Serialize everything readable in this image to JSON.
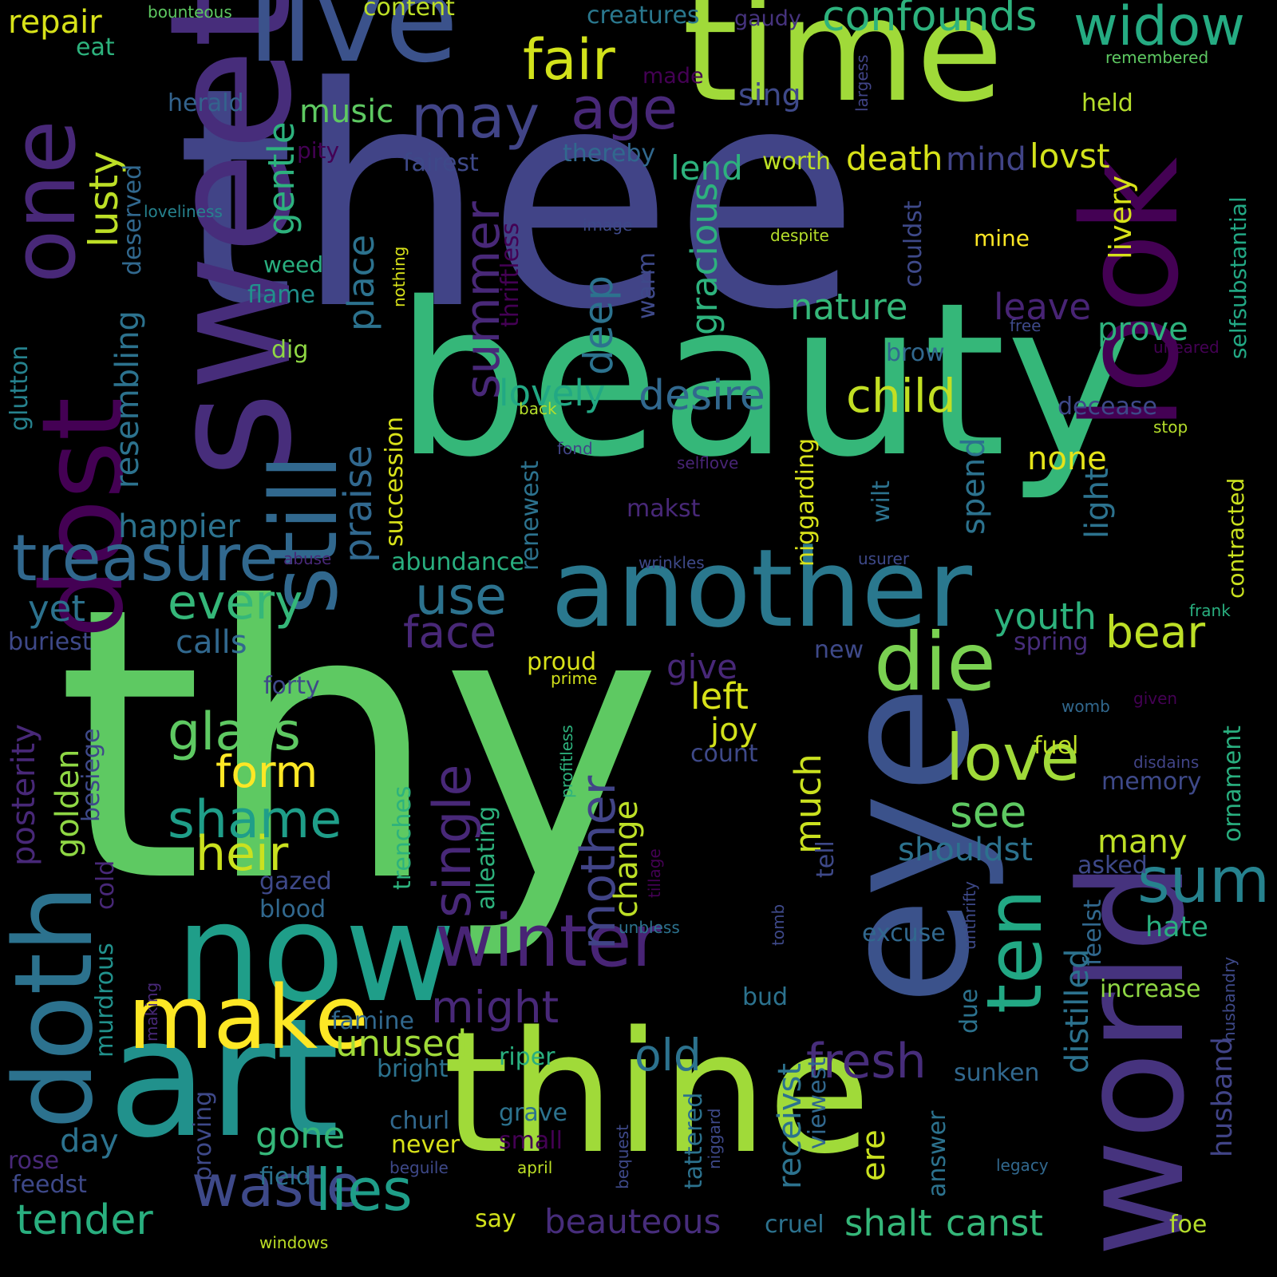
{
  "words": [
    {
      "text": "thy",
      "color": "#5ec962"
    },
    {
      "text": "thee",
      "color": "#414487"
    },
    {
      "text": "beauty",
      "color": "#35b779"
    },
    {
      "text": "time",
      "color": "#a0da39"
    },
    {
      "text": "sweet",
      "color": "#472d7b"
    },
    {
      "text": "thine",
      "color": "#a0da39"
    },
    {
      "text": "world",
      "color": "#46337e"
    },
    {
      "text": "eye",
      "color": "#3b528b"
    },
    {
      "text": "art",
      "color": "#21918c"
    },
    {
      "text": "now",
      "color": "#1f9e89"
    },
    {
      "text": "live",
      "color": "#3b528b"
    },
    {
      "text": "look",
      "color": "#440154"
    },
    {
      "text": "another",
      "color": "#2a788e"
    },
    {
      "text": "doth",
      "color": "#2c728e"
    },
    {
      "text": "dost",
      "color": "#440154"
    },
    {
      "text": "one",
      "color": "#482878"
    },
    {
      "text": "still",
      "color": "#31688e"
    },
    {
      "text": "ten",
      "color": "#22a884"
    },
    {
      "text": "make",
      "color": "#fde725"
    },
    {
      "text": "die",
      "color": "#7ad151"
    },
    {
      "text": "treasure",
      "color": "#31688e"
    },
    {
      "text": "winter",
      "color": "#482475"
    },
    {
      "text": "waste",
      "color": "#3e4989"
    },
    {
      "text": "lies",
      "color": "#1f9e89"
    },
    {
      "text": "love",
      "color": "#a0da39"
    },
    {
      "text": "sum",
      "color": "#26828e"
    },
    {
      "text": "fair",
      "color": "#d2e21b"
    },
    {
      "text": "age",
      "color": "#482878"
    },
    {
      "text": "may",
      "color": "#414487"
    },
    {
      "text": "widow",
      "color": "#25ab82"
    },
    {
      "text": "confounds",
      "color": "#2db27d"
    },
    {
      "text": "repair",
      "color": "#d8e219"
    },
    {
      "text": "content",
      "color": "#bddf26"
    },
    {
      "text": "creatures",
      "color": "#2a788e"
    },
    {
      "text": "gaudy",
      "color": "#46337e"
    },
    {
      "text": "bounteous",
      "color": "#5ec962"
    },
    {
      "text": "eat",
      "color": "#2db27d"
    },
    {
      "text": "remembered",
      "color": "#5ec962"
    },
    {
      "text": "music",
      "color": "#5ec962"
    },
    {
      "text": "sing",
      "color": "#3e4989"
    },
    {
      "text": "made",
      "color": "#440154"
    },
    {
      "text": "herald",
      "color": "#33638d"
    },
    {
      "text": "held",
      "color": "#b5de2b"
    },
    {
      "text": "largess",
      "color": "#414487"
    },
    {
      "text": "pity",
      "color": "#440154"
    },
    {
      "text": "fairest",
      "color": "#3e4989"
    },
    {
      "text": "thereby",
      "color": "#31688e"
    },
    {
      "text": "worth",
      "color": "#bddf26"
    },
    {
      "text": "death",
      "color": "#d8e219"
    },
    {
      "text": "mind",
      "color": "#414487"
    },
    {
      "text": "lovst",
      "color": "#d2e21b"
    },
    {
      "text": "lend",
      "color": "#2db27d"
    },
    {
      "text": "lusty",
      "color": "#bddf26"
    },
    {
      "text": "gentle",
      "color": "#2db27d"
    },
    {
      "text": "summer",
      "color": "#482878"
    },
    {
      "text": "deep",
      "color": "#2c728e"
    },
    {
      "text": "gracious",
      "color": "#2db27d"
    },
    {
      "text": "thriftless",
      "color": "#440154"
    },
    {
      "text": "couldst",
      "color": "#3e4989"
    },
    {
      "text": "livery",
      "color": "#d8e219"
    },
    {
      "text": "selfsubstantial",
      "color": "#22a884"
    },
    {
      "text": "deserved",
      "color": "#31688e"
    },
    {
      "text": "loveliness",
      "color": "#26828e"
    },
    {
      "text": "image",
      "color": "#3e4989"
    },
    {
      "text": "despite",
      "color": "#b5de2b"
    },
    {
      "text": "mine",
      "color": "#fde725"
    },
    {
      "text": "nothing",
      "color": "#d8e219"
    },
    {
      "text": "weed",
      "color": "#29af7f"
    },
    {
      "text": "flame",
      "color": "#21918c"
    },
    {
      "text": "place",
      "color": "#2c728e"
    },
    {
      "text": "nature",
      "color": "#35b779"
    },
    {
      "text": "leave",
      "color": "#482475"
    },
    {
      "text": "prove",
      "color": "#2db27d"
    },
    {
      "text": "warm",
      "color": "#3e4989"
    },
    {
      "text": "free",
      "color": "#3e4989"
    },
    {
      "text": "dig",
      "color": "#8fd744"
    },
    {
      "text": "brow",
      "color": "#31688e"
    },
    {
      "text": "uneared",
      "color": "#440154"
    },
    {
      "text": "glutton",
      "color": "#26828e"
    },
    {
      "text": "resembling",
      "color": "#2c728e"
    },
    {
      "text": "praise",
      "color": "#31688e"
    },
    {
      "text": "lovely",
      "color": "#22a884"
    },
    {
      "text": "desire",
      "color": "#31688e"
    },
    {
      "text": "child",
      "color": "#c2df23"
    },
    {
      "text": "decease",
      "color": "#3e4989"
    },
    {
      "text": "back",
      "color": "#b5de2b"
    },
    {
      "text": "stop",
      "color": "#b5de2b"
    },
    {
      "text": "succession",
      "color": "#d8e219"
    },
    {
      "text": "wilt",
      "color": "#2c728e"
    },
    {
      "text": "none",
      "color": "#e5e419"
    },
    {
      "text": "niggarding",
      "color": "#d8e219"
    },
    {
      "text": "selflove",
      "color": "#482475"
    },
    {
      "text": "fond",
      "color": "#414487"
    },
    {
      "text": "spend",
      "color": "#2c728e"
    },
    {
      "text": "contracted",
      "color": "#cae11f"
    },
    {
      "text": "happier",
      "color": "#2c728e"
    },
    {
      "text": "makst",
      "color": "#482878"
    },
    {
      "text": "renewest",
      "color": "#2c728e"
    },
    {
      "text": "light",
      "color": "#2c728e"
    },
    {
      "text": "abuse",
      "color": "#482878"
    },
    {
      "text": "abundance",
      "color": "#29af7f"
    },
    {
      "text": "wrinkles",
      "color": "#3e4989"
    },
    {
      "text": "usurer",
      "color": "#3e4989"
    },
    {
      "text": "every",
      "color": "#35b779"
    },
    {
      "text": "use",
      "color": "#2c728e"
    },
    {
      "text": "face",
      "color": "#482878"
    },
    {
      "text": "youth",
      "color": "#2db27d"
    },
    {
      "text": "bear",
      "color": "#bddf26"
    },
    {
      "text": "frank",
      "color": "#29af7f"
    },
    {
      "text": "yet",
      "color": "#2c728e"
    },
    {
      "text": "calls",
      "color": "#31688e"
    },
    {
      "text": "buriest",
      "color": "#3e4989"
    },
    {
      "text": "spring",
      "color": "#472d7b"
    },
    {
      "text": "proud",
      "color": "#d8e219"
    },
    {
      "text": "new",
      "color": "#3e4989"
    },
    {
      "text": "give",
      "color": "#482878"
    },
    {
      "text": "left",
      "color": "#d8e219"
    },
    {
      "text": "prime",
      "color": "#d2e21b"
    },
    {
      "text": "forty",
      "color": "#3e4989"
    },
    {
      "text": "posterity",
      "color": "#482878"
    },
    {
      "text": "golden",
      "color": "#8fd744"
    },
    {
      "text": "besiege",
      "color": "#3e4989"
    },
    {
      "text": "glass",
      "color": "#5ec962"
    },
    {
      "text": "single",
      "color": "#482878"
    },
    {
      "text": "joy",
      "color": "#d2e21b"
    },
    {
      "text": "profitless",
      "color": "#2db27d"
    },
    {
      "text": "womb",
      "color": "#31688e"
    },
    {
      "text": "given",
      "color": "#440154"
    },
    {
      "text": "form",
      "color": "#fde725"
    },
    {
      "text": "mother",
      "color": "#414487"
    },
    {
      "text": "count",
      "color": "#3e4989"
    },
    {
      "text": "fuel",
      "color": "#bddf26"
    },
    {
      "text": "disdains",
      "color": "#414487"
    },
    {
      "text": "ornament",
      "color": "#29af7f"
    },
    {
      "text": "shame",
      "color": "#1f9e89"
    },
    {
      "text": "change",
      "color": "#bddf26"
    },
    {
      "text": "see",
      "color": "#5ec962"
    },
    {
      "text": "memory",
      "color": "#3e4989"
    },
    {
      "text": "cold",
      "color": "#482878"
    },
    {
      "text": "heir",
      "color": "#cae11f"
    },
    {
      "text": "much",
      "color": "#cae11f"
    },
    {
      "text": "tell",
      "color": "#3e4989"
    },
    {
      "text": "many",
      "color": "#bddf26"
    },
    {
      "text": "shouldst",
      "color": "#2c728e"
    },
    {
      "text": "alleating",
      "color": "#2db27d"
    },
    {
      "text": "unthrifty",
      "color": "#3e4989"
    },
    {
      "text": "asked",
      "color": "#3e4989"
    },
    {
      "text": "murdrous",
      "color": "#21918c"
    },
    {
      "text": "gazed",
      "color": "#3e4989"
    },
    {
      "text": "trenches",
      "color": "#2db27d"
    },
    {
      "text": "tillage",
      "color": "#440154"
    },
    {
      "text": "blood",
      "color": "#31688e"
    },
    {
      "text": "hate",
      "color": "#29af7f"
    },
    {
      "text": "unbless",
      "color": "#2c728e"
    },
    {
      "text": "excuse",
      "color": "#31688e"
    },
    {
      "text": "feelst",
      "color": "#31688e"
    },
    {
      "text": "might",
      "color": "#482878"
    },
    {
      "text": "making",
      "color": "#482878"
    },
    {
      "text": "tomb",
      "color": "#3e4989"
    },
    {
      "text": "bud",
      "color": "#2c728e"
    },
    {
      "text": "increase",
      "color": "#8fd744"
    },
    {
      "text": "distilled",
      "color": "#2c728e"
    },
    {
      "text": "famine",
      "color": "#31688e"
    },
    {
      "text": "due",
      "color": "#2c728e"
    },
    {
      "text": "husbandry",
      "color": "#3e4989"
    },
    {
      "text": "unused",
      "color": "#a0da39"
    },
    {
      "text": "old",
      "color": "#2c728e"
    },
    {
      "text": "fresh",
      "color": "#472d7b"
    },
    {
      "text": "riper",
      "color": "#29af7f"
    },
    {
      "text": "bright",
      "color": "#2c728e"
    },
    {
      "text": "sunken",
      "color": "#31688e"
    },
    {
      "text": "husband",
      "color": "#414487"
    },
    {
      "text": "proving",
      "color": "#3e4989"
    },
    {
      "text": "receivst",
      "color": "#2c728e"
    },
    {
      "text": "viewest",
      "color": "#31688e"
    },
    {
      "text": "gone",
      "color": "#35b779"
    },
    {
      "text": "churl",
      "color": "#31688e"
    },
    {
      "text": "grave",
      "color": "#2c728e"
    },
    {
      "text": "small",
      "color": "#440154"
    },
    {
      "text": "never",
      "color": "#d8e219"
    },
    {
      "text": "tattered",
      "color": "#2c728e"
    },
    {
      "text": "niggard",
      "color": "#3e4989"
    },
    {
      "text": "bequest",
      "color": "#3e4989"
    },
    {
      "text": "answer",
      "color": "#2c728e"
    },
    {
      "text": "ere",
      "color": "#cae11f"
    },
    {
      "text": "day",
      "color": "#2c728e"
    },
    {
      "text": "rose",
      "color": "#482878"
    },
    {
      "text": "feedst",
      "color": "#3e4989"
    },
    {
      "text": "field",
      "color": "#2c728e"
    },
    {
      "text": "beguile",
      "color": "#3e4989"
    },
    {
      "text": "april",
      "color": "#bddf26"
    },
    {
      "text": "legacy",
      "color": "#31688e"
    },
    {
      "text": "tender",
      "color": "#29af7f"
    },
    {
      "text": "beauteous",
      "color": "#472d7b"
    },
    {
      "text": "shalt",
      "color": "#35b779"
    },
    {
      "text": "canst",
      "color": "#35b779"
    },
    {
      "text": "say",
      "color": "#d2e21b"
    },
    {
      "text": "cruel",
      "color": "#2c728e"
    },
    {
      "text": "foe",
      "color": "#b5de2b"
    },
    {
      "text": "windows",
      "color": "#bddf26"
    }
  ]
}
